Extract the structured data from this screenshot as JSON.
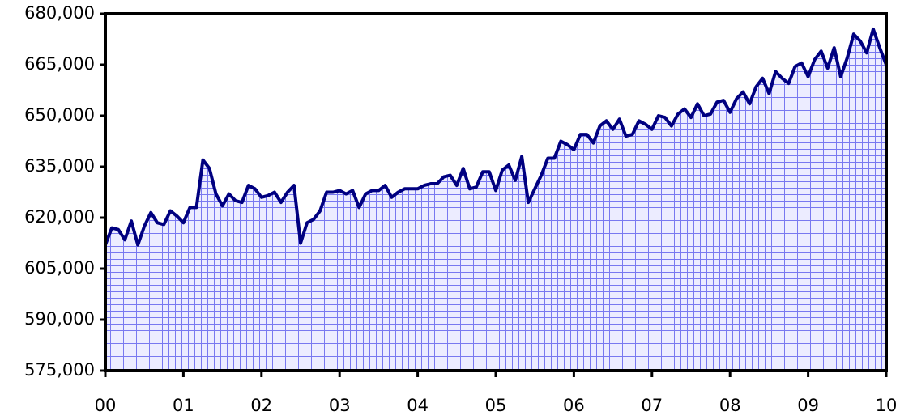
{
  "chart_data": {
    "type": "area",
    "x": [
      0,
      1,
      2,
      3,
      4,
      5,
      6,
      7,
      8,
      9,
      10,
      11,
      12,
      13,
      14,
      15,
      16,
      17,
      18,
      19,
      20,
      21,
      22,
      23,
      24,
      25,
      26,
      27,
      28,
      29,
      30,
      31,
      32,
      33,
      34,
      35,
      36,
      37,
      38,
      39,
      40,
      41,
      42,
      43,
      44,
      45,
      46,
      47,
      48,
      49,
      50,
      51,
      52,
      53,
      54,
      55,
      56,
      57,
      58,
      59,
      60,
      61,
      62,
      63,
      64,
      65,
      66,
      67,
      68,
      69,
      70,
      71,
      72,
      73,
      74,
      75,
      76,
      77,
      78,
      79,
      80,
      81,
      82,
      83,
      84,
      85,
      86,
      87,
      88,
      89,
      90,
      91,
      92,
      93,
      94,
      95,
      96,
      97,
      98,
      99,
      100,
      101,
      102,
      103,
      104,
      105,
      106,
      107,
      108,
      109,
      110,
      111,
      112,
      113,
      114,
      115,
      116,
      117,
      118,
      119,
      120
    ],
    "series": [
      {
        "color": "#000080",
        "values": [
          612000,
          617000,
          616500,
          613500,
          619000,
          612000,
          617500,
          621500,
          618500,
          618000,
          622000,
          620500,
          618500,
          623000,
          623000,
          637000,
          634500,
          627000,
          623500,
          627000,
          625000,
          624500,
          629500,
          628500,
          626000,
          626500,
          627500,
          624500,
          627500,
          629500,
          612500,
          618500,
          619500,
          622000,
          627500,
          627500,
          628000,
          627000,
          628000,
          623000,
          627000,
          628000,
          628000,
          629500,
          626000,
          627500,
          628500,
          628500,
          628500,
          629500,
          630000,
          630000,
          632000,
          632500,
          629500,
          634500,
          628500,
          629000,
          633500,
          633500,
          628000,
          634000,
          635500,
          631000,
          638000,
          624500,
          628500,
          632500,
          637500,
          637500,
          642500,
          641500,
          640000,
          644500,
          644500,
          642000,
          647000,
          648500,
          646000,
          649000,
          644000,
          644500,
          648500,
          647500,
          646000,
          650000,
          649500,
          647000,
          650500,
          652000,
          649500,
          653500,
          650000,
          650500,
          654000,
          654500,
          651000,
          655000,
          657000,
          653500,
          658500,
          661000,
          656500,
          663000,
          661000,
          659500,
          664500,
          665500,
          661500,
          666500,
          669000,
          664000,
          670000,
          661500,
          667000,
          674000,
          672000,
          668500,
          675500,
          670000,
          665000
        ]
      }
    ],
    "xlim": [
      0,
      120
    ],
    "xticks": [
      {
        "value": 0,
        "label": "00"
      },
      {
        "value": 12,
        "label": "01"
      },
      {
        "value": 24,
        "label": "02"
      },
      {
        "value": 36,
        "label": "03"
      },
      {
        "value": 48,
        "label": "04"
      },
      {
        "value": 60,
        "label": "05"
      },
      {
        "value": 72,
        "label": "06"
      },
      {
        "value": 84,
        "label": "07"
      },
      {
        "value": 96,
        "label": "08"
      },
      {
        "value": 108,
        "label": "09"
      },
      {
        "value": 120,
        "label": "10"
      }
    ],
    "ylim": [
      575000,
      680000
    ],
    "yticks": [
      {
        "value": 575000,
        "label": "575,000"
      },
      {
        "value": 590000,
        "label": "590,000"
      },
      {
        "value": 605000,
        "label": "605,000"
      },
      {
        "value": 620000,
        "label": "620,000"
      },
      {
        "value": 635000,
        "label": "635,000"
      },
      {
        "value": 650000,
        "label": "650,000"
      },
      {
        "value": 665000,
        "label": "665,000"
      },
      {
        "value": 680000,
        "label": "680,000"
      }
    ]
  }
}
